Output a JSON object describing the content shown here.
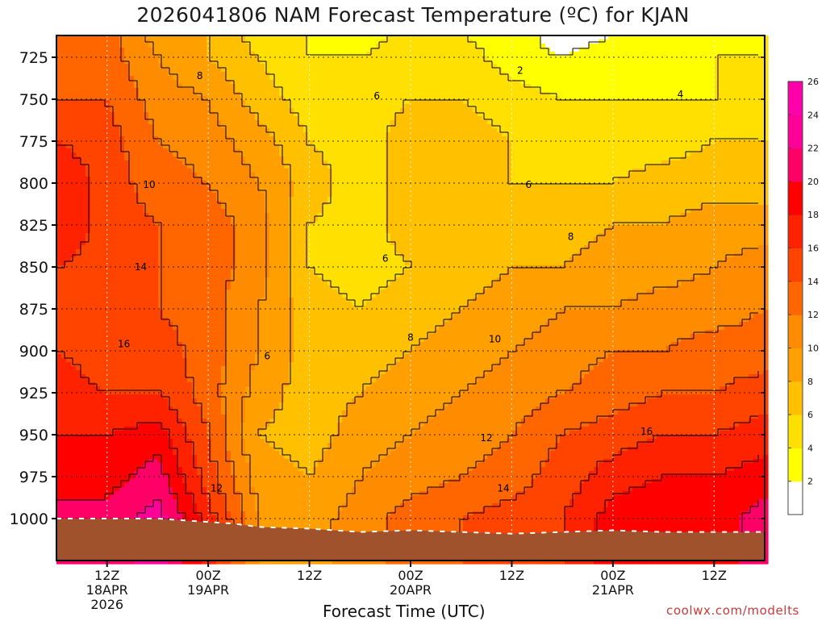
{
  "chart_data": {
    "type": "heatmap",
    "title": "2026041806 NAM Forecast Temperature (ºC) for KJAN",
    "xlabel": "Forecast Time (UTC)",
    "ylabel": "",
    "credit": "coolwx.com/modelts",
    "x_unit": "forecast hour",
    "xlim": [
      0,
      84
    ],
    "y_unit": "hPa",
    "ylim": [
      1025,
      712
    ],
    "y_ticks": [
      725,
      750,
      775,
      800,
      825,
      850,
      875,
      900,
      925,
      950,
      975,
      1000
    ],
    "x_ticks": [
      {
        "hour": 6,
        "lines": [
          "12Z",
          "18APR",
          "2026"
        ]
      },
      {
        "hour": 18,
        "lines": [
          "00Z",
          "19APR"
        ]
      },
      {
        "hour": 30,
        "lines": [
          "12Z"
        ]
      },
      {
        "hour": 42,
        "lines": [
          "00Z",
          "20APR"
        ]
      },
      {
        "hour": 54,
        "lines": [
          "12Z"
        ]
      },
      {
        "hour": 66,
        "lines": [
          "00Z",
          "21APR"
        ]
      },
      {
        "hour": 78,
        "lines": [
          "12Z"
        ]
      }
    ],
    "grid": true,
    "colorbar": {
      "levels": [
        2,
        4,
        6,
        8,
        10,
        12,
        14,
        16,
        18,
        20,
        22,
        24,
        26
      ],
      "colors": [
        "#ffffff",
        "#ffff00",
        "#ffe000",
        "#ffc000",
        "#ffa000",
        "#ff8c00",
        "#ff6600",
        "#ff4400",
        "#ff2200",
        "#ff0000",
        "#ff0066",
        "#ff0099",
        "#ff00aa"
      ]
    },
    "x": [
      0,
      6,
      12,
      18,
      24,
      30,
      36,
      42,
      48,
      54,
      60,
      66,
      72,
      78,
      84
    ],
    "y": [
      712,
      725,
      750,
      775,
      800,
      825,
      850,
      875,
      900,
      925,
      950,
      975,
      1000,
      1025
    ],
    "values": [
      [
        13,
        13,
        9,
        8,
        5,
        4,
        3,
        5,
        4,
        3,
        1,
        2,
        3,
        3,
        4
      ],
      [
        13,
        13,
        10,
        8,
        6,
        4,
        4,
        5,
        5,
        3,
        2,
        3,
        3,
        4,
        4
      ],
      [
        14,
        14,
        11,
        10,
        7,
        5,
        5,
        6,
        6,
        5,
        4,
        4,
        4,
        4,
        5
      ],
      [
        16,
        15,
        12,
        11,
        9,
        6,
        5,
        7,
        7,
        6,
        5,
        5,
        5,
        6,
        6
      ],
      [
        18,
        15,
        13,
        12,
        10,
        7,
        5,
        7,
        7,
        6,
        6,
        6,
        7,
        7,
        7
      ],
      [
        18,
        15,
        14,
        13,
        11,
        6,
        5,
        7,
        7,
        7,
        7,
        8,
        8,
        9,
        9
      ],
      [
        16,
        15,
        14,
        13,
        11,
        6,
        5,
        6,
        7,
        8,
        8,
        9,
        9,
        10,
        11
      ],
      [
        16,
        15,
        14,
        13,
        10,
        7,
        6,
        7,
        8,
        9,
        10,
        10,
        11,
        11,
        12
      ],
      [
        16,
        15,
        15,
        13,
        10,
        7,
        7,
        8,
        9,
        10,
        11,
        12,
        12,
        13,
        13
      ],
      [
        17,
        16,
        16,
        13,
        9,
        7,
        8,
        9,
        10,
        11,
        12,
        13,
        14,
        14,
        15
      ],
      [
        18,
        18,
        19,
        14,
        8,
        7,
        9,
        10,
        11,
        12,
        14,
        15,
        16,
        16,
        17
      ],
      [
        19,
        19,
        21,
        15,
        9,
        8,
        10,
        11,
        12,
        13,
        15,
        17,
        18,
        18,
        19
      ],
      [
        21,
        21,
        23,
        17,
        10,
        9,
        11,
        13,
        14,
        15,
        16,
        19,
        20,
        19,
        21
      ],
      [
        21,
        21,
        23,
        17,
        10,
        9,
        11,
        13,
        14,
        15,
        16,
        19,
        20,
        19,
        21
      ]
    ],
    "terrain": {
      "color": "#a0522d",
      "surface_pressure": [
        [
          0,
          1000
        ],
        [
          6,
          1000
        ],
        [
          12,
          1000
        ],
        [
          15,
          1001
        ],
        [
          18,
          1002
        ],
        [
          21,
          1003
        ],
        [
          24,
          1005
        ],
        [
          30,
          1006
        ],
        [
          36,
          1008
        ],
        [
          42,
          1007
        ],
        [
          48,
          1008
        ],
        [
          54,
          1009
        ],
        [
          60,
          1008
        ],
        [
          66,
          1007
        ],
        [
          72,
          1008
        ],
        [
          78,
          1008
        ],
        [
          84,
          1008
        ]
      ]
    },
    "contour_labels": [
      {
        "x": 55,
        "y": 733,
        "text": "2"
      },
      {
        "x": 74,
        "y": 747,
        "text": "4"
      },
      {
        "x": 38,
        "y": 748,
        "text": "6"
      },
      {
        "x": 56,
        "y": 801,
        "text": "6"
      },
      {
        "x": 39,
        "y": 845,
        "text": "6"
      },
      {
        "x": 25,
        "y": 903,
        "text": "6"
      },
      {
        "x": 17,
        "y": 736,
        "text": "8"
      },
      {
        "x": 61,
        "y": 832,
        "text": "8"
      },
      {
        "x": 42,
        "y": 892,
        "text": "8"
      },
      {
        "x": 11,
        "y": 801,
        "text": "10"
      },
      {
        "x": 52,
        "y": 893,
        "text": "10"
      },
      {
        "x": 51,
        "y": 952,
        "text": "12"
      },
      {
        "x": 19,
        "y": 982,
        "text": "12"
      },
      {
        "x": 53,
        "y": 982,
        "text": "14"
      },
      {
        "x": 10,
        "y": 850,
        "text": "14"
      },
      {
        "x": 8,
        "y": 896,
        "text": "16"
      },
      {
        "x": 70,
        "y": 948,
        "text": "16"
      }
    ]
  }
}
